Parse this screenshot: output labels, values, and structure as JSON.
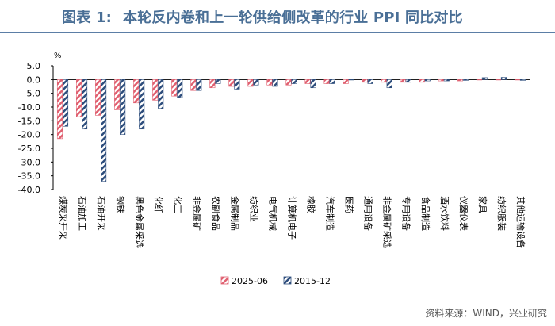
{
  "figure": {
    "label": "图表 1:",
    "title": "本轮反内卷和上一轮供给侧改革的行业 PPI 同比对比",
    "source": "资料来源：WIND，兴业研究"
  },
  "chart_data": {
    "type": "bar",
    "unit": "%",
    "ylim": [
      -40,
      5
    ],
    "yticks": [
      5,
      0,
      -5,
      -10,
      -15,
      -20,
      -25,
      -30,
      -35,
      -40
    ],
    "ytick_labels": [
      "5.0",
      "0.0",
      "-5.0",
      "-10.0",
      "-15.0",
      "-20.0",
      "-25.0",
      "-30.0",
      "-35.0",
      "-40.0"
    ],
    "legend_position": "bottom-center",
    "categories": [
      "煤炭采开采",
      "石油加工",
      "石油开采",
      "钢铁",
      "黑色金属采选",
      "化纤",
      "化工",
      "非金属矿",
      "农副食品",
      "金属制品",
      "纺织业",
      "电气机械",
      "计算机电子",
      "橡胶",
      "汽车制造",
      "医药",
      "通用设备",
      "非金属矿采选",
      "专用设备",
      "食品制造",
      "酒水饮料",
      "仪器仪表",
      "家具",
      "纺织服装",
      "其他运输设备"
    ],
    "series": [
      {
        "name": "2025-06",
        "color": "#e06070",
        "values": [
          -21.5,
          -13.5,
          -13.0,
          -11.0,
          -8.5,
          -7.5,
          -6.0,
          -4.0,
          -3.0,
          -2.5,
          -2.5,
          -2.0,
          -2.0,
          -1.5,
          -1.5,
          -1.5,
          -1.0,
          -1.0,
          -1.0,
          -1.0,
          -0.5,
          -0.5,
          0.0,
          0.0,
          0.0
        ]
      },
      {
        "name": "2015-12",
        "color": "#2d4d7c",
        "values": [
          -17.0,
          -18.0,
          -37.0,
          -20.0,
          -18.0,
          -10.5,
          -6.5,
          -4.0,
          -1.5,
          -3.5,
          -2.0,
          -2.5,
          -1.5,
          -3.0,
          -1.5,
          0.0,
          -1.5,
          -3.0,
          -1.0,
          -0.5,
          -0.5,
          -0.3,
          0.7,
          0.8,
          -0.3
        ]
      }
    ]
  }
}
